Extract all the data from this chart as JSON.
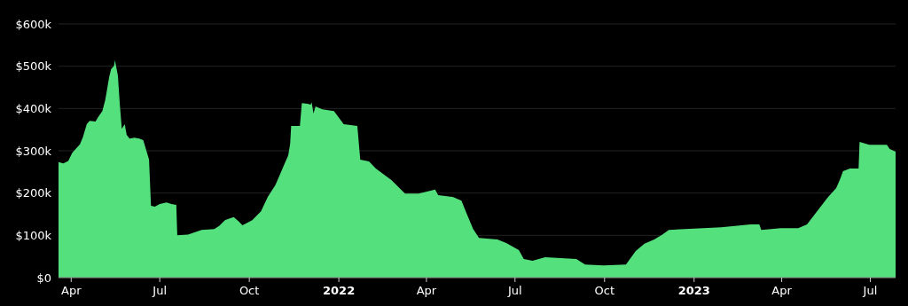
{
  "chart_data": {
    "type": "area",
    "grid": "y",
    "xlim": [
      "2021-03-19",
      "2023-07-27"
    ],
    "ylim": [
      0,
      600000
    ],
    "xticks": [
      {
        "value": "2021-04-01",
        "label": "Apr"
      },
      {
        "value": "2021-07-01",
        "label": "Jul"
      },
      {
        "value": "2021-10-01",
        "label": "Oct"
      },
      {
        "value": "2022-01-01",
        "label": "2022"
      },
      {
        "value": "2022-04-01",
        "label": "Apr"
      },
      {
        "value": "2022-07-01",
        "label": "Jul"
      },
      {
        "value": "2022-10-01",
        "label": "Oct"
      },
      {
        "value": "2023-01-01",
        "label": "2023"
      },
      {
        "value": "2023-04-01",
        "label": "Apr"
      },
      {
        "value": "2023-07-01",
        "label": "Jul"
      }
    ],
    "yticks": [
      {
        "value": 0,
        "label": "$0"
      },
      {
        "value": 100000,
        "label": "$100k"
      },
      {
        "value": 200000,
        "label": "$200k"
      },
      {
        "value": 300000,
        "label": "$300k"
      },
      {
        "value": 400000,
        "label": "$400k"
      },
      {
        "value": 500000,
        "label": "$500k"
      },
      {
        "value": 600000,
        "label": "$600k"
      }
    ],
    "series": [
      {
        "color": "#55e07e",
        "x": [
          "2021-03-19",
          "2021-03-24",
          "2021-03-29",
          "2021-04-02",
          "2021-04-06",
          "2021-04-10",
          "2021-04-13",
          "2021-04-17",
          "2021-04-20",
          "2021-04-26",
          "2021-04-29",
          "2021-05-03",
          "2021-05-06",
          "2021-05-08",
          "2021-05-10",
          "2021-05-12",
          "2021-05-15",
          "2021-05-16",
          "2021-05-19",
          "2021-05-21",
          "2021-05-23",
          "2021-05-26",
          "2021-05-28",
          "2021-05-31",
          "2021-06-05",
          "2021-06-10",
          "2021-06-14",
          "2021-06-16",
          "2021-06-20",
          "2021-06-22",
          "2021-06-26",
          "2021-07-01",
          "2021-07-08",
          "2021-07-13",
          "2021-07-18",
          "2021-07-19",
          "2021-07-30",
          "2021-08-03",
          "2021-08-13",
          "2021-08-26",
          "2021-08-31",
          "2021-09-06",
          "2021-09-15",
          "2021-09-20",
          "2021-09-24",
          "2021-10-04",
          "2021-10-13",
          "2021-10-20",
          "2021-10-28",
          "2021-11-01",
          "2021-11-06",
          "2021-11-10",
          "2021-11-12",
          "2021-11-13",
          "2021-11-22",
          "2021-11-24",
          "2021-11-30",
          "2021-12-03",
          "2021-12-04",
          "2021-12-06",
          "2021-12-08",
          "2021-12-15",
          "2021-12-27",
          "2022-01-06",
          "2022-01-20",
          "2022-01-23",
          "2022-02-01",
          "2022-02-08",
          "2022-02-24",
          "2022-03-10",
          "2022-03-24",
          "2022-04-10",
          "2022-04-13",
          "2022-04-28",
          "2022-05-07",
          "2022-05-12",
          "2022-05-19",
          "2022-05-25",
          "2022-06-13",
          "2022-06-22",
          "2022-07-05",
          "2022-07-10",
          "2022-07-19",
          "2022-08-01",
          "2022-09-02",
          "2022-09-11",
          "2022-09-30",
          "2022-10-23",
          "2022-11-02",
          "2022-11-11",
          "2022-11-21",
          "2022-11-29",
          "2022-12-06",
          "2023-01-29",
          "2023-02-28",
          "2023-03-09",
          "2023-03-11",
          "2023-03-31",
          "2023-04-18",
          "2023-04-27",
          "2023-05-04",
          "2023-05-18",
          "2023-05-27",
          "2023-05-31",
          "2023-06-03",
          "2023-06-10",
          "2023-06-19",
          "2023-06-20",
          "2023-06-30",
          "2023-07-18",
          "2023-07-21",
          "2023-07-27"
        ],
        "values": [
          273000,
          270000,
          276000,
          295000,
          305000,
          315000,
          332000,
          363000,
          371000,
          369000,
          381000,
          394000,
          420000,
          447000,
          474000,
          493000,
          501000,
          514000,
          478000,
          409000,
          352000,
          363000,
          338000,
          329000,
          331000,
          329000,
          325000,
          310000,
          279000,
          170000,
          168000,
          174000,
          178000,
          174000,
          172000,
          100000,
          102000,
          105000,
          113000,
          115000,
          122000,
          136000,
          143000,
          133000,
          124000,
          136000,
          157000,
          191000,
          220000,
          241000,
          268000,
          289000,
          317000,
          359000,
          359000,
          413000,
          411000,
          409000,
          415000,
          388000,
          405000,
          398000,
          394000,
          363000,
          359000,
          279000,
          275000,
          258000,
          231000,
          199000,
          199000,
          208000,
          195000,
          191000,
          182000,
          153000,
          115000,
          94000,
          90000,
          82000,
          65000,
          44000,
          40000,
          48000,
          44000,
          31000,
          29000,
          31000,
          63000,
          80000,
          90000,
          101000,
          113000,
          119000,
          126000,
          126000,
          113000,
          117000,
          117000,
          126000,
          147000,
          189000,
          212000,
          233000,
          252000,
          258000,
          258000,
          321000,
          314000,
          314000,
          304000,
          298000
        ]
      }
    ]
  }
}
